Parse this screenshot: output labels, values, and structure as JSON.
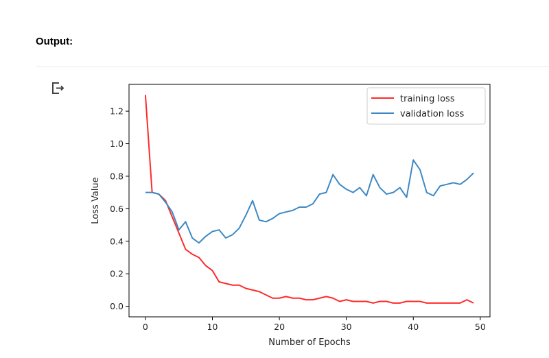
{
  "header": {
    "output_label": "Output:"
  },
  "cell": {
    "output_icon": "output-redirect-icon"
  },
  "chart_data": {
    "type": "line",
    "title": "",
    "xlabel": "Number of Epochs",
    "ylabel": "Loss Value",
    "xlim": [
      -2.45,
      51.45
    ],
    "ylim": [
      -0.065,
      1.365
    ],
    "xticks": [
      0,
      10,
      20,
      30,
      40,
      50
    ],
    "xtick_labels": [
      "0",
      "10",
      "20",
      "30",
      "40",
      "50"
    ],
    "yticks": [
      0.0,
      0.2,
      0.4,
      0.6,
      0.8,
      1.0,
      1.2
    ],
    "ytick_labels": [
      "0.0",
      "0.2",
      "0.4",
      "0.6",
      "0.8",
      "1.0",
      "1.2"
    ],
    "grid": false,
    "legend_position": "top-right",
    "x": [
      0,
      1,
      2,
      3,
      4,
      5,
      6,
      7,
      8,
      9,
      10,
      11,
      12,
      13,
      14,
      15,
      16,
      17,
      18,
      19,
      20,
      21,
      22,
      23,
      24,
      25,
      26,
      27,
      28,
      29,
      30,
      31,
      32,
      33,
      34,
      35,
      36,
      37,
      38,
      39,
      40,
      41,
      42,
      43,
      44,
      45,
      46,
      47,
      48,
      49
    ],
    "series": [
      {
        "name": "training loss",
        "color": "#ff2a2a",
        "values": [
          1.3,
          0.7,
          0.69,
          0.65,
          0.55,
          0.45,
          0.35,
          0.32,
          0.3,
          0.25,
          0.22,
          0.15,
          0.14,
          0.13,
          0.13,
          0.11,
          0.1,
          0.09,
          0.07,
          0.05,
          0.05,
          0.06,
          0.05,
          0.05,
          0.04,
          0.04,
          0.05,
          0.06,
          0.05,
          0.03,
          0.04,
          0.03,
          0.03,
          0.03,
          0.02,
          0.03,
          0.03,
          0.02,
          0.02,
          0.03,
          0.03,
          0.03,
          0.02,
          0.02,
          0.02,
          0.02,
          0.02,
          0.02,
          0.04,
          0.02
        ]
      },
      {
        "name": "validation loss",
        "color": "#3d88c4",
        "values": [
          0.7,
          0.7,
          0.69,
          0.64,
          0.58,
          0.47,
          0.52,
          0.42,
          0.39,
          0.43,
          0.46,
          0.47,
          0.42,
          0.44,
          0.48,
          0.56,
          0.65,
          0.53,
          0.52,
          0.54,
          0.57,
          0.58,
          0.59,
          0.61,
          0.61,
          0.63,
          0.69,
          0.7,
          0.81,
          0.75,
          0.72,
          0.7,
          0.73,
          0.68,
          0.81,
          0.73,
          0.69,
          0.7,
          0.73,
          0.67,
          0.9,
          0.84,
          0.7,
          0.68,
          0.74,
          0.75,
          0.76,
          0.75,
          0.78,
          0.82
        ]
      }
    ]
  }
}
